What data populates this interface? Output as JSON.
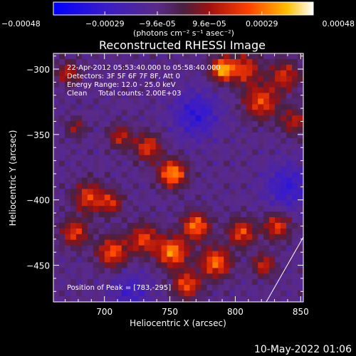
{
  "chart_data": {
    "type": "heatmap",
    "title": "Reconstructed RHESSI Image",
    "xlabel": "Heliocentric X (arcsec)",
    "ylabel": "Heliocentric Y (arcsec)",
    "xlim": [
      661,
      852
    ],
    "ylim": [
      -478,
      -288
    ],
    "x_ticks": [
      700,
      750,
      800,
      850
    ],
    "y_ticks": [
      -300,
      -350,
      -400,
      -450
    ],
    "colorbar": {
      "min": -0.00048,
      "max": 0.00048,
      "tick_values": [
        -0.00048,
        -0.00029,
        -9.6e-05,
        9.6e-05,
        0.00029,
        0.00048
      ],
      "tick_labels": [
        "-0.00048",
        "-0.00029",
        "-9.6e-05",
        "9.6e-05",
        "0.00029",
        "0.00048"
      ],
      "unit_label": "(photons cm⁻² s⁻¹ asec⁻²)"
    },
    "annotations": [
      "22-Apr-2012 05:53:40.000 to 05:58:40.000",
      "Detectors: 3F 5F 6F 7F 8F, Att 0",
      "Energy Range: 12.0 - 25.0 keV",
      "Clean     Total counts: 2.00E+03"
    ],
    "peak_label": "Position of Peak = [783,-295]",
    "blobs": [
      {
        "x": 790,
        "y": -300,
        "amp": 0.00048,
        "sigma": 6
      },
      {
        "x": 807,
        "y": -300,
        "amp": 0.0003,
        "sigma": 8
      },
      {
        "x": 820,
        "y": -325,
        "amp": 0.00032,
        "sigma": 9
      },
      {
        "x": 838,
        "y": -305,
        "amp": 0.00026,
        "sigma": 8
      },
      {
        "x": 845,
        "y": -340,
        "amp": 0.00022,
        "sigma": 7
      },
      {
        "x": 752,
        "y": -380,
        "amp": 0.00045,
        "sigma": 7
      },
      {
        "x": 733,
        "y": -360,
        "amp": 0.0003,
        "sigma": 7
      },
      {
        "x": 712,
        "y": -352,
        "amp": 0.00024,
        "sigma": 6
      },
      {
        "x": 688,
        "y": -398,
        "amp": 0.0003,
        "sigma": 8
      },
      {
        "x": 705,
        "y": -402,
        "amp": 0.00026,
        "sigma": 6
      },
      {
        "x": 677,
        "y": -425,
        "amp": 0.0003,
        "sigma": 7
      },
      {
        "x": 706,
        "y": -440,
        "amp": 0.00034,
        "sigma": 8
      },
      {
        "x": 730,
        "y": -430,
        "amp": 0.0003,
        "sigma": 8
      },
      {
        "x": 752,
        "y": -440,
        "amp": 0.00042,
        "sigma": 8
      },
      {
        "x": 770,
        "y": -420,
        "amp": 0.0004,
        "sigma": 7
      },
      {
        "x": 785,
        "y": -448,
        "amp": 0.00038,
        "sigma": 8
      },
      {
        "x": 763,
        "y": -465,
        "amp": 0.00034,
        "sigma": 7
      },
      {
        "x": 805,
        "y": -425,
        "amp": 0.00032,
        "sigma": 7
      },
      {
        "x": 832,
        "y": -420,
        "amp": 0.0003,
        "sigma": 7
      },
      {
        "x": 822,
        "y": -450,
        "amp": 0.00026,
        "sigma": 6
      },
      {
        "x": 672,
        "y": -303,
        "amp": 0.00024,
        "sigma": 6
      },
      {
        "x": 678,
        "y": -345,
        "amp": 0.00018,
        "sigma": 5
      },
      {
        "x": 770,
        "y": -335,
        "amp": -0.00022,
        "sigma": 12
      },
      {
        "x": 840,
        "y": -390,
        "amp": -0.0002,
        "sigma": 12
      },
      {
        "x": 720,
        "y": -470,
        "amp": -0.00016,
        "sigma": 10
      }
    ]
  },
  "timestamp": "10-May-2022 01:06"
}
